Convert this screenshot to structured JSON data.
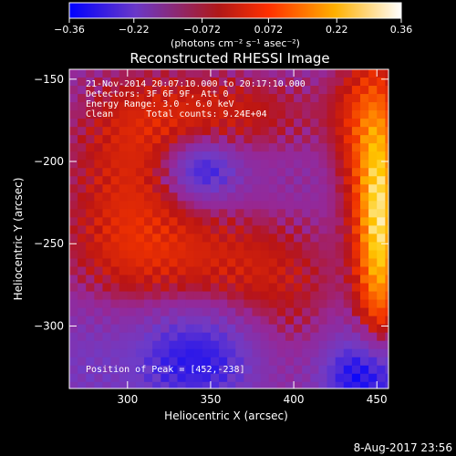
{
  "chart_data": {
    "type": "heatmap",
    "title": "Reconstructed RHESSI Image",
    "xlabel": "Heliocentric X (arcsec)",
    "ylabel": "Heliocentric Y (arcsec)",
    "x_range": [
      265,
      457
    ],
    "y_range": [
      -338,
      -144
    ],
    "xticks": [
      {
        "value": 300,
        "label": "300"
      },
      {
        "value": 350,
        "label": "350"
      },
      {
        "value": 400,
        "label": "400"
      },
      {
        "value": 450,
        "label": "450"
      }
    ],
    "yticks": [
      {
        "value": -150,
        "label": "−150"
      },
      {
        "value": -200,
        "label": "−200"
      },
      {
        "value": -250,
        "label": "−250"
      },
      {
        "value": -300,
        "label": "−300"
      }
    ],
    "colorbar": {
      "range": [
        -0.36,
        0.36
      ],
      "ticks": [
        {
          "value": -0.36,
          "label": "−0.36"
        },
        {
          "value": -0.22,
          "label": "−0.22"
        },
        {
          "value": -0.072,
          "label": "−0.072"
        },
        {
          "value": 0.072,
          "label": "0.072"
        },
        {
          "value": 0.22,
          "label": "0.22"
        },
        {
          "value": 0.36,
          "label": "0.36"
        }
      ],
      "unit_label": "(photons cm⁻² s⁻¹ asec⁻²)"
    },
    "annotations": [
      "21-Nov-2014 20:07:10.000 to 20:17:10.000",
      "Detectors: 3F 6F 9F, Att 0",
      "Energy Range: 3.0 - 6.0 keV",
      "Clean      Total counts: 9.24E+04"
    ],
    "peak_label": "Position of Peak = [452,-238]",
    "peak": {
      "x": 452,
      "y": -238
    },
    "colormap": [
      "#0000ff",
      "#7f3fc2",
      "#c02020",
      "#ff7000",
      "#ffd000",
      "#ffffff"
    ]
  },
  "footer": {
    "date": "8-Aug-2017 23:56"
  }
}
